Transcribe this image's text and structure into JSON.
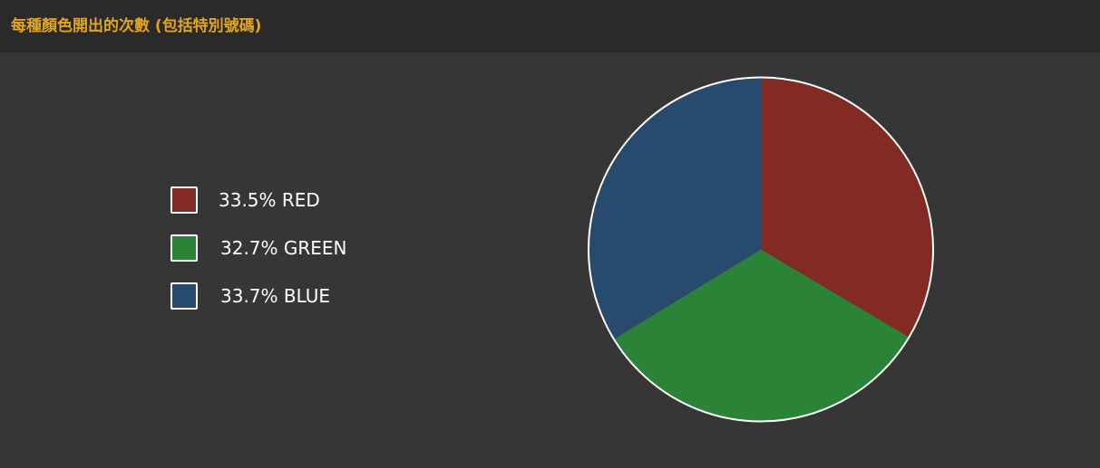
{
  "header": {
    "title": "每種顏色開出的次數 (包括特別號碼)"
  },
  "chart_data": {
    "type": "pie",
    "title": "每種顏色開出的次數 (包括特別號碼)",
    "legend_position": "left",
    "slices": [
      {
        "name": "RED",
        "percent": 33.5,
        "label": "33.5% RED",
        "color": "#812b24"
      },
      {
        "name": "GREEN",
        "percent": 32.7,
        "label": "32.7% GREEN",
        "color": "#2b8338"
      },
      {
        "name": "BLUE",
        "percent": 33.7,
        "label": "33.7% BLUE",
        "color": "#284a6d"
      }
    ]
  },
  "colors": {
    "background": "#363636",
    "header_background": "#2a2a2a",
    "title": "#e0a522",
    "slice_border": "#ffffff"
  }
}
